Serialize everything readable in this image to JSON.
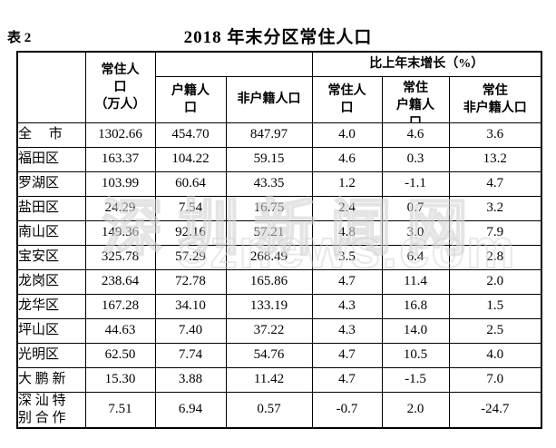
{
  "page": {
    "table_label": "表 2",
    "title": "2018 年末分区常住人口"
  },
  "watermark": {
    "line1": "深圳新闻网",
    "line2": "sznews.com"
  },
  "table": {
    "header": {
      "district": "",
      "resident_pop": "常住人\n口\n（万人）",
      "pop_group": "",
      "hukou": "户籍人\n口",
      "non_hukou": "非户籍人口",
      "growth_group": "比上年末增长（%）",
      "growth_resident": "常住人\n口",
      "growth_hukou": "常住\n户籍人\n口",
      "growth_non_hukou": "常住\n非户籍人口"
    },
    "rows": [
      {
        "district": "全　 市",
        "resident": "1302.66",
        "hukou": "454.70",
        "non_hukou": "847.97",
        "g_resident": "4.0",
        "g_hukou": "4.6",
        "g_non_hukou": "3.6"
      },
      {
        "district": "福田区",
        "resident": "163.37",
        "hukou": "104.22",
        "non_hukou": "59.15",
        "g_resident": "4.6",
        "g_hukou": "0.3",
        "g_non_hukou": "13.2"
      },
      {
        "district": "罗湖区",
        "resident": "103.99",
        "hukou": "60.64",
        "non_hukou": "43.35",
        "g_resident": "1.2",
        "g_hukou": "-1.1",
        "g_non_hukou": "4.7"
      },
      {
        "district": "盐田区",
        "resident": "24.29",
        "hukou": "7.54",
        "non_hukou": "16.75",
        "g_resident": "2.4",
        "g_hukou": "0.7",
        "g_non_hukou": "3.2"
      },
      {
        "district": "南山区",
        "resident": "149.36",
        "hukou": "92.16",
        "non_hukou": "57.21",
        "g_resident": "4.8",
        "g_hukou": "3.0",
        "g_non_hukou": "7.9"
      },
      {
        "district": "宝安区",
        "resident": "325.78",
        "hukou": "57.29",
        "non_hukou": "268.49",
        "g_resident": "3.5",
        "g_hukou": "6.4",
        "g_non_hukou": "2.8"
      },
      {
        "district": "龙岗区",
        "resident": "238.64",
        "hukou": "72.78",
        "non_hukou": "165.86",
        "g_resident": "4.7",
        "g_hukou": "11.4",
        "g_non_hukou": "2.0"
      },
      {
        "district": "龙华区",
        "resident": "167.28",
        "hukou": "34.10",
        "non_hukou": "133.19",
        "g_resident": "4.3",
        "g_hukou": "16.8",
        "g_non_hukou": "1.5"
      },
      {
        "district": "坪山区",
        "resident": "44.63",
        "hukou": "7.40",
        "non_hukou": "37.22",
        "g_resident": "4.3",
        "g_hukou": "14.0",
        "g_non_hukou": "2.5"
      },
      {
        "district": "光明区",
        "resident": "62.50",
        "hukou": "7.74",
        "non_hukou": "54.76",
        "g_resident": "4.7",
        "g_hukou": "10.5",
        "g_non_hukou": "4.0"
      },
      {
        "district": "大 鹏 新",
        "resident": "15.30",
        "hukou": "3.88",
        "non_hukou": "11.42",
        "g_resident": "4.7",
        "g_hukou": "-1.5",
        "g_non_hukou": "7.0"
      },
      {
        "district": "深 汕 特\n别 合 作",
        "resident": "7.51",
        "hukou": "6.94",
        "non_hukou": "0.57",
        "g_resident": "-0.7",
        "g_hukou": "2.0",
        "g_non_hukou": "-24.7"
      }
    ]
  }
}
